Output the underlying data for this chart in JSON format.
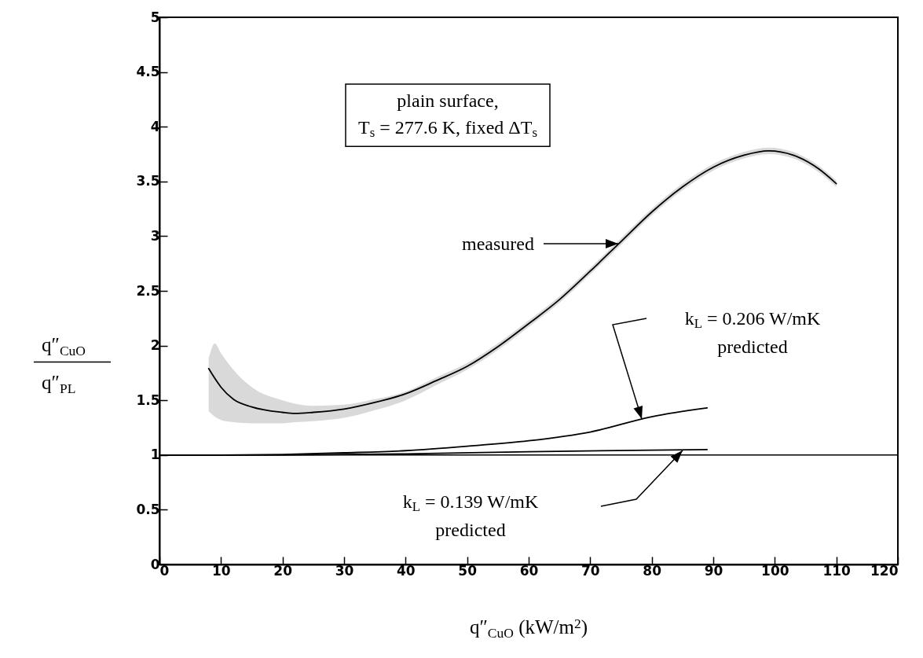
{
  "chart_data": {
    "type": "line",
    "xlabel": "q″$_{CuO}$ (kW/m$^{2}$)",
    "ylabel": "q″$_{CuO}$\nq″$_{PL}$",
    "xlim": [
      0,
      120
    ],
    "xticks": [
      0,
      10,
      20,
      30,
      40,
      50,
      60,
      70,
      80,
      90,
      100,
      110,
      120
    ],
    "ylim": [
      0,
      5
    ],
    "yticks": [
      0,
      0.5,
      1,
      1.5,
      2,
      2.5,
      3,
      3.5,
      4,
      4.5,
      5
    ],
    "grid": false,
    "legend": false,
    "marker": "none",
    "line_style": "solid",
    "series": [
      {
        "color": "#000000",
        "x": [
          8,
          9,
          10,
          12,
          15,
          20,
          22,
          25,
          30,
          35,
          40,
          45,
          50,
          55,
          60,
          65,
          70,
          75,
          80,
          85,
          90,
          95,
          99,
          103,
          107,
          110
        ],
        "values": [
          1.79,
          1.7,
          1.62,
          1.51,
          1.44,
          1.39,
          1.38,
          1.39,
          1.42,
          1.48,
          1.56,
          1.68,
          1.81,
          1.99,
          2.2,
          2.42,
          2.68,
          2.95,
          3.22,
          3.45,
          3.63,
          3.74,
          3.78,
          3.74,
          3.62,
          3.48
        ],
        "lower": [
          1.4,
          1.35,
          1.32,
          1.3,
          1.29,
          1.29,
          1.3,
          1.31,
          1.34,
          1.41,
          1.5,
          1.64,
          1.78,
          1.96,
          2.17,
          2.39,
          2.65,
          2.92,
          3.19,
          3.42,
          3.6,
          3.71,
          3.75,
          3.71,
          3.59,
          3.45
        ],
        "upper": [
          1.88,
          2.02,
          1.93,
          1.78,
          1.62,
          1.5,
          1.47,
          1.45,
          1.46,
          1.51,
          1.58,
          1.71,
          1.84,
          2.02,
          2.23,
          2.45,
          2.71,
          2.98,
          3.25,
          3.48,
          3.66,
          3.77,
          3.81,
          3.77,
          3.65,
          3.51
        ]
      },
      {
        "color": "#000000",
        "x": [
          0,
          10,
          20,
          30,
          40,
          50,
          60,
          70,
          80,
          89
        ],
        "values": [
          1.0,
          1.0,
          1.005,
          1.02,
          1.04,
          1.08,
          1.13,
          1.21,
          1.35,
          1.43
        ]
      },
      {
        "color": "#000000",
        "x": [
          0,
          20,
          40,
          60,
          80,
          89
        ],
        "values": [
          1.0,
          1.0,
          1.01,
          1.03,
          1.045,
          1.05
        ]
      }
    ],
    "ref_lines": [
      {
        "axis": "y",
        "value": 1,
        "color": "#000000"
      }
    ],
    "annotations": [
      "plain surface,\nT$_{s}$ = 277.6 K, fixed ΔT$_{s}$",
      "measured",
      "k$_{L}$ = 0.206 W/mK\npredicted",
      "k$_{L}$ = 0.139 W/mK\npredicted"
    ]
  }
}
